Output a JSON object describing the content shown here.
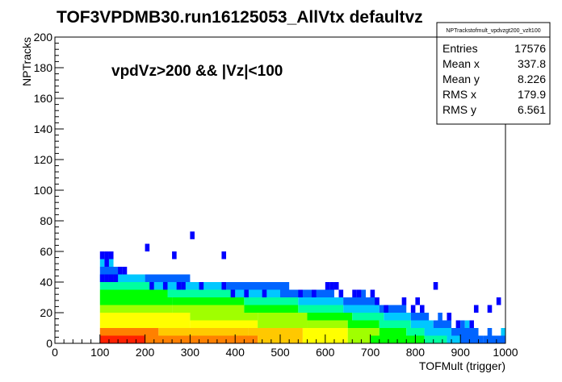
{
  "chart_data": {
    "type": "heatmap",
    "title": "TOF3VPDMB30.run16125053_AllVtx defaultvz",
    "annotation": "vpdVz>200 && |Vz|<100",
    "xlabel": "TOFMult (trigger)",
    "ylabel": "NPTracks",
    "xlim": [
      0,
      1000
    ],
    "ylim": [
      0,
      200
    ],
    "x_ticks": [
      0,
      100,
      200,
      300,
      400,
      500,
      600,
      700,
      800,
      900,
      1000
    ],
    "y_ticks": [
      0,
      20,
      40,
      60,
      80,
      100,
      120,
      140,
      160,
      180,
      200
    ],
    "grid": false,
    "bin_width_x": 10,
    "bin_width_y": 5,
    "stats_box": {
      "title": "NPTrackstofmult_vpdvzgt200_vzlt100",
      "rows": [
        {
          "label": "Entries",
          "value": "17576"
        },
        {
          "label": "Mean x",
          "value": "337.8"
        },
        {
          "label": "Mean y",
          "value": "8.226"
        },
        {
          "label": "RMS x",
          "value": "179.9"
        },
        {
          "label": "RMS y",
          "value": "6.561"
        }
      ]
    },
    "colors": [
      "#0000ff",
      "#0064ff",
      "#00c8ff",
      "#00ffa0",
      "#00ff00",
      "#a0ff00",
      "#ffff00",
      "#ffc800",
      "#ff8000",
      "#ff2000"
    ],
    "level_ranges": [
      {
        "y0": 0,
        "y1": 5,
        "segments": [
          {
            "x0": 100,
            "x1": 200,
            "level": 9
          },
          {
            "x0": 200,
            "x1": 300,
            "level": 8
          },
          {
            "x0": 300,
            "x1": 450,
            "level": 8
          },
          {
            "x0": 450,
            "x1": 550,
            "level": 7
          },
          {
            "x0": 550,
            "x1": 600,
            "level": 6
          },
          {
            "x0": 600,
            "x1": 650,
            "level": 6
          },
          {
            "x0": 650,
            "x1": 700,
            "level": 5
          },
          {
            "x0": 700,
            "x1": 750,
            "level": 4
          },
          {
            "x0": 750,
            "x1": 820,
            "level": 4
          },
          {
            "x0": 820,
            "x1": 870,
            "level": 3
          },
          {
            "x0": 870,
            "x1": 900,
            "level": 2
          },
          {
            "x0": 900,
            "x1": 950,
            "level": 1
          },
          {
            "x0": 950,
            "x1": 1000,
            "level": 1
          }
        ]
      },
      {
        "y0": 5,
        "y1": 10,
        "segments": [
          {
            "x0": 100,
            "x1": 230,
            "level": 8
          },
          {
            "x0": 230,
            "x1": 430,
            "level": 7
          },
          {
            "x0": 430,
            "x1": 550,
            "level": 7
          },
          {
            "x0": 550,
            "x1": 650,
            "level": 6
          },
          {
            "x0": 650,
            "x1": 720,
            "level": 5
          },
          {
            "x0": 720,
            "x1": 780,
            "level": 4
          },
          {
            "x0": 780,
            "x1": 820,
            "level": 3
          },
          {
            "x0": 820,
            "x1": 880,
            "level": 2
          },
          {
            "x0": 880,
            "x1": 940,
            "level": 1
          }
        ]
      },
      {
        "y0": 10,
        "y1": 15,
        "segments": [
          {
            "x0": 100,
            "x1": 300,
            "level": 6
          },
          {
            "x0": 300,
            "x1": 450,
            "level": 6
          },
          {
            "x0": 450,
            "x1": 560,
            "level": 5
          },
          {
            "x0": 560,
            "x1": 650,
            "level": 5
          },
          {
            "x0": 650,
            "x1": 720,
            "level": 4
          },
          {
            "x0": 720,
            "x1": 790,
            "level": 3
          },
          {
            "x0": 790,
            "x1": 840,
            "level": 2
          },
          {
            "x0": 840,
            "x1": 880,
            "level": 1
          }
        ]
      },
      {
        "y0": 15,
        "y1": 20,
        "segments": [
          {
            "x0": 100,
            "x1": 300,
            "level": 6
          },
          {
            "x0": 300,
            "x1": 450,
            "level": 5
          },
          {
            "x0": 450,
            "x1": 560,
            "level": 5
          },
          {
            "x0": 560,
            "x1": 660,
            "level": 4
          },
          {
            "x0": 660,
            "x1": 730,
            "level": 3
          },
          {
            "x0": 730,
            "x1": 790,
            "level": 2
          },
          {
            "x0": 790,
            "x1": 830,
            "level": 1
          }
        ]
      },
      {
        "y0": 20,
        "y1": 25,
        "segments": [
          {
            "x0": 100,
            "x1": 260,
            "level": 5
          },
          {
            "x0": 260,
            "x1": 420,
            "level": 5
          },
          {
            "x0": 420,
            "x1": 540,
            "level": 4
          },
          {
            "x0": 540,
            "x1": 640,
            "level": 3
          },
          {
            "x0": 640,
            "x1": 720,
            "level": 2
          },
          {
            "x0": 720,
            "x1": 780,
            "level": 1
          }
        ]
      },
      {
        "y0": 25,
        "y1": 30,
        "segments": [
          {
            "x0": 100,
            "x1": 260,
            "level": 4
          },
          {
            "x0": 260,
            "x1": 420,
            "level": 4
          },
          {
            "x0": 420,
            "x1": 540,
            "level": 3
          },
          {
            "x0": 540,
            "x1": 640,
            "level": 2
          },
          {
            "x0": 640,
            "x1": 720,
            "level": 1
          }
        ]
      },
      {
        "y0": 30,
        "y1": 35,
        "segments": [
          {
            "x0": 100,
            "x1": 250,
            "level": 4
          },
          {
            "x0": 250,
            "x1": 400,
            "level": 3
          },
          {
            "x0": 400,
            "x1": 500,
            "level": 2
          },
          {
            "x0": 500,
            "x1": 620,
            "level": 1
          }
        ]
      },
      {
        "y0": 35,
        "y1": 40,
        "segments": [
          {
            "x0": 100,
            "x1": 220,
            "level": 3
          },
          {
            "x0": 220,
            "x1": 380,
            "level": 2
          },
          {
            "x0": 380,
            "x1": 520,
            "level": 1
          }
        ]
      },
      {
        "y0": 40,
        "y1": 45,
        "segments": [
          {
            "x0": 100,
            "x1": 200,
            "level": 2
          },
          {
            "x0": 200,
            "x1": 300,
            "level": 1
          }
        ]
      },
      {
        "y0": 45,
        "y1": 50,
        "segments": [
          {
            "x0": 100,
            "x1": 150,
            "level": 1
          }
        ]
      }
    ],
    "isolated_bins": [
      {
        "x": 100,
        "y": 55,
        "level": 0
      },
      {
        "x": 110,
        "y": 55,
        "level": 0
      },
      {
        "x": 120,
        "y": 55,
        "level": 0
      },
      {
        "x": 100,
        "y": 50,
        "level": 2
      },
      {
        "x": 110,
        "y": 50,
        "level": 0
      },
      {
        "x": 120,
        "y": 50,
        "level": 2
      },
      {
        "x": 140,
        "y": 45,
        "level": 0
      },
      {
        "x": 150,
        "y": 45,
        "level": 0
      },
      {
        "x": 200,
        "y": 60,
        "level": 0
      },
      {
        "x": 260,
        "y": 55,
        "level": 0
      },
      {
        "x": 300,
        "y": 68,
        "level": 0
      },
      {
        "x": 370,
        "y": 55,
        "level": 0
      },
      {
        "x": 100,
        "y": 40,
        "level": 0
      },
      {
        "x": 110,
        "y": 40,
        "level": 0
      },
      {
        "x": 120,
        "y": 40,
        "level": 0
      },
      {
        "x": 130,
        "y": 40,
        "level": 0
      },
      {
        "x": 210,
        "y": 35,
        "level": 0
      },
      {
        "x": 240,
        "y": 35,
        "level": 0
      },
      {
        "x": 270,
        "y": 35,
        "level": 0
      },
      {
        "x": 280,
        "y": 35,
        "level": 0
      },
      {
        "x": 320,
        "y": 35,
        "level": 0
      },
      {
        "x": 370,
        "y": 35,
        "level": 0
      },
      {
        "x": 390,
        "y": 30,
        "level": 0
      },
      {
        "x": 420,
        "y": 30,
        "level": 0
      },
      {
        "x": 460,
        "y": 30,
        "level": 0
      },
      {
        "x": 540,
        "y": 30,
        "level": 0
      },
      {
        "x": 570,
        "y": 30,
        "level": 0
      },
      {
        "x": 600,
        "y": 35,
        "level": 0
      },
      {
        "x": 610,
        "y": 35,
        "level": 0
      },
      {
        "x": 620,
        "y": 35,
        "level": 0
      },
      {
        "x": 630,
        "y": 30,
        "level": 0
      },
      {
        "x": 660,
        "y": 30,
        "level": 0
      },
      {
        "x": 670,
        "y": 30,
        "level": 0
      },
      {
        "x": 680,
        "y": 30,
        "level": 1
      },
      {
        "x": 700,
        "y": 30,
        "level": 0
      },
      {
        "x": 710,
        "y": 25,
        "level": 0
      },
      {
        "x": 730,
        "y": 20,
        "level": 0
      },
      {
        "x": 770,
        "y": 25,
        "level": 0
      },
      {
        "x": 790,
        "y": 20,
        "level": 0
      },
      {
        "x": 800,
        "y": 25,
        "level": 0
      },
      {
        "x": 810,
        "y": 20,
        "level": 0
      },
      {
        "x": 840,
        "y": 35,
        "level": 0
      },
      {
        "x": 850,
        "y": 15,
        "level": 1
      },
      {
        "x": 870,
        "y": 15,
        "level": 0
      },
      {
        "x": 890,
        "y": 10,
        "level": 0
      },
      {
        "x": 900,
        "y": 10,
        "level": 1
      },
      {
        "x": 920,
        "y": 10,
        "level": 0
      },
      {
        "x": 930,
        "y": 20,
        "level": 0
      },
      {
        "x": 960,
        "y": 20,
        "level": 0
      },
      {
        "x": 980,
        "y": 25,
        "level": 0
      },
      {
        "x": 990,
        "y": 5,
        "level": 2
      },
      {
        "x": 960,
        "y": 5,
        "level": 1
      },
      {
        "x": 910,
        "y": 10,
        "level": 2
      }
    ]
  }
}
